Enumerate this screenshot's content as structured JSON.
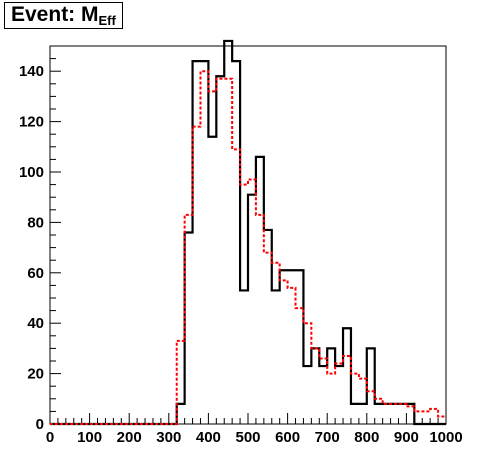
{
  "chart_data": {
    "type": "histogram-step",
    "title": "Event: M",
    "title_subscript": "Eff",
    "xlim": [
      0,
      1000
    ],
    "ylim": [
      0,
      150
    ],
    "x_ticks": [
      0,
      100,
      200,
      300,
      400,
      500,
      600,
      700,
      800,
      900,
      1000
    ],
    "y_ticks": [
      0,
      20,
      40,
      60,
      80,
      100,
      120,
      140
    ],
    "bin_width": 20,
    "series": [
      {
        "style": "solid",
        "color": "#000000",
        "bin_edges": [
          0,
          320,
          340,
          360,
          400,
          420,
          440,
          460,
          480,
          500,
          520,
          540,
          560,
          580,
          640,
          660,
          680,
          700,
          720,
          740,
          760,
          800,
          820,
          920,
          940,
          1000
        ],
        "values": [
          0,
          8,
          76,
          144,
          114,
          138,
          152,
          144,
          53,
          91,
          106,
          77,
          53,
          61,
          23,
          30,
          23,
          30,
          23,
          38,
          8,
          30,
          8,
          0,
          0
        ]
      },
      {
        "style": "dashed",
        "color": "#ff0000",
        "bin_edges": [
          0,
          300,
          320,
          340,
          360,
          380,
          400,
          420,
          440,
          460,
          480,
          500,
          520,
          540,
          560,
          580,
          600,
          620,
          640,
          660,
          680,
          700,
          720,
          740,
          760,
          780,
          800,
          820,
          840,
          860,
          880,
          900,
          920,
          940,
          960,
          980,
          1000
        ],
        "values": [
          0,
          0,
          33,
          83,
          118,
          140,
          132,
          137,
          137,
          109,
          95,
          97,
          83,
          68,
          64,
          57,
          54,
          46,
          40,
          30,
          26,
          20,
          24,
          27,
          20,
          18,
          13,
          10,
          8,
          8,
          8,
          7,
          5,
          5,
          6,
          3
        ]
      }
    ]
  }
}
